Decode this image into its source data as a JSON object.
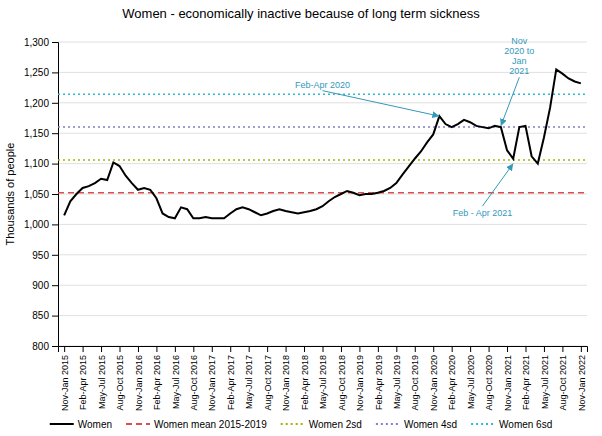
{
  "chart_data": {
    "type": "line",
    "title": "Women - economically inactive because of long term sickness",
    "ylabel": "Thousands of people",
    "ylim": [
      800,
      1300
    ],
    "yticks": [
      800,
      850,
      900,
      950,
      {
        "value": 1000,
        "label": "1,000"
      },
      {
        "value": 1050,
        "label": "1,050"
      },
      {
        "value": 1100,
        "label": "1,100"
      },
      {
        "value": 1150,
        "label": "1,150"
      },
      {
        "value": 1200,
        "label": "1,200"
      },
      {
        "value": 1250,
        "label": "1,250"
      },
      {
        "value": 1300,
        "label": "1,300"
      }
    ],
    "grid": true,
    "legend": "bottom",
    "categories": [
      "Nov-Jan 2015",
      null,
      null,
      "Feb-Apr 2015",
      null,
      null,
      "May-Jul 2015",
      null,
      null,
      "Aug-Oct 2015",
      null,
      null,
      "Nov-Jan 2016",
      null,
      null,
      "Feb-Apr 2016",
      null,
      null,
      "May-Jul 2016",
      null,
      null,
      "Aug-Oct 2016",
      null,
      null,
      "Nov-Jan 2017",
      null,
      null,
      "Feb-Apr 2017",
      null,
      null,
      "May-Jul 2017",
      null,
      null,
      "Aug-Oct 2017",
      null,
      null,
      "Nov-Jan 2018",
      null,
      null,
      "Feb-Apr 2018",
      null,
      null,
      "May-Jul 2018",
      null,
      null,
      "Aug-Oct 2018",
      null,
      null,
      "Nov-Jan 2019",
      null,
      null,
      "Feb-Apr 2019",
      null,
      null,
      "May-Jul 2019",
      null,
      null,
      "Aug-Oct 2019",
      null,
      null,
      "Nov-Jan 2020",
      null,
      null,
      "Feb-Apr 2020",
      null,
      null,
      "May-Jul 2020",
      null,
      null,
      "Aug-Oct 2020",
      null,
      null,
      "Nov-Jan 2021",
      null,
      null,
      "Feb-Apr 2021",
      null,
      null,
      "May-Jul 2021",
      null,
      null,
      "Aug-Oct 2021",
      null,
      null,
      "Nov-Jan 2022"
    ],
    "series": [
      {
        "name": "Women",
        "color": "#000000",
        "line_style": "solid",
        "values": [
          1015,
          1038,
          1050,
          1060,
          1063,
          1068,
          1075,
          1073,
          1102,
          1096,
          1080,
          1068,
          1057,
          1060,
          1057,
          1043,
          1018,
          1012,
          1010,
          1028,
          1025,
          1010,
          1010,
          1012,
          1010,
          1010,
          1010,
          1018,
          1025,
          1028,
          1025,
          1020,
          1015,
          1018,
          1022,
          1025,
          1022,
          1020,
          1018,
          1020,
          1022,
          1025,
          1030,
          1038,
          1045,
          1050,
          1055,
          1052,
          1048,
          1050,
          1050,
          1052,
          1055,
          1060,
          1068,
          1082,
          1095,
          1108,
          1120,
          1135,
          1148,
          1178,
          1165,
          1160,
          1165,
          1172,
          1168,
          1162,
          1160,
          1158,
          1162,
          1160,
          1122,
          1108,
          1160,
          1162,
          1112,
          1100,
          1143,
          1192,
          1255,
          1248,
          1240,
          1235,
          1232
        ]
      }
    ],
    "reference_lines": [
      {
        "name": "Women mean 2015-2019",
        "value": 1052,
        "color": "#d94f4f",
        "line_style": "dashed"
      },
      {
        "name": "Women 2sd",
        "value": 1106,
        "color": "#a8b400",
        "line_style": "dotted"
      },
      {
        "name": "Women 4sd",
        "value": 1160,
        "color": "#8080cc",
        "line_style": "dotted"
      },
      {
        "name": "Women 6sd",
        "value": 1214,
        "color": "#30b8d8",
        "line_style": "dotted"
      }
    ],
    "annotations": [
      {
        "text": "Feb-Apr 2020",
        "x": 61,
        "y": 1178,
        "text_x": 42,
        "text_y": 1220,
        "color": "#3399bb"
      },
      {
        "text": "Nov\n2020 to\nJan\n2021",
        "x": 71,
        "y": 1162,
        "text_x": 74,
        "text_y": 1242,
        "color": "#3399bb"
      },
      {
        "text": "Feb - Apr 2021",
        "x": 73,
        "y": 1100,
        "text_x": 68,
        "text_y": 1030,
        "color": "#3399bb"
      }
    ]
  }
}
